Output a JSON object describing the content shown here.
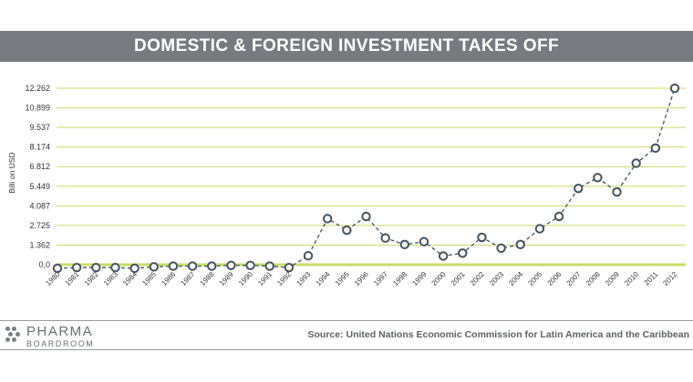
{
  "header": {
    "title": "DOMESTIC & FOREIGN INVESTMENT TAKES OFF"
  },
  "footer": {
    "logo_top": "PHARMA",
    "logo_bottom": "BOARDROOM",
    "source": "Source: United Nations Economic Commission for Latin America and the Caribbean"
  },
  "colors": {
    "grid": "#c9dc6a",
    "line": "#44525d",
    "marker_fill": "#ffffff",
    "banner": "#777b80"
  },
  "chart_data": {
    "type": "line",
    "title": "DOMESTIC & FOREIGN INVESTMENT TAKES OFF",
    "ylabel": "Billi on USD",
    "xlabel": "",
    "ylim": [
      -0.3,
      12.9
    ],
    "grid": true,
    "y_ticks": [
      0,
      1.362,
      2.725,
      4.087,
      5.449,
      6.812,
      8.174,
      9.537,
      10.899,
      12.262
    ],
    "y_tick_labels": [
      "0,0",
      "1.362",
      "2.725",
      "4.087",
      "5.449",
      "6.812",
      "8.174",
      "9.537",
      "10.899",
      "12.262"
    ],
    "x": [
      "1980",
      "1981",
      "1982",
      "1983",
      "1984",
      "1985",
      "1986",
      "1987",
      "1988",
      "1989",
      "1990",
      "1991",
      "1992",
      "1993",
      "1994",
      "1995",
      "1996",
      "1997",
      "1998",
      "1999",
      "2000",
      "2001",
      "2002",
      "2003",
      "2004",
      "2005",
      "2006",
      "2007",
      "2008",
      "2009",
      "2010",
      "2011",
      "2012"
    ],
    "series": [
      {
        "values": [
          -0.25,
          -0.2,
          -0.2,
          -0.2,
          -0.25,
          -0.15,
          -0.1,
          -0.1,
          -0.1,
          -0.05,
          -0.05,
          -0.1,
          -0.2,
          0.62,
          3.2,
          2.4,
          3.35,
          1.85,
          1.4,
          1.6,
          0.6,
          0.8,
          1.9,
          1.15,
          1.4,
          2.5,
          3.35,
          5.3,
          6.05,
          5.05,
          7.05,
          8.1,
          12.26
        ]
      }
    ]
  }
}
